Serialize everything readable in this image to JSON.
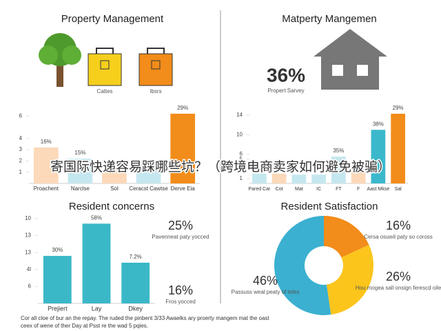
{
  "panels": {
    "top_left": {
      "title": "Property Management",
      "labels": [
        "Cattes",
        "Ibsrs"
      ]
    },
    "top_right": {
      "title": "Matperty Mangemen",
      "stat": "36%",
      "caption": "Propert Sarvey"
    }
  },
  "chart_data": [
    {
      "type": "bar",
      "categories": [
        "Proachent",
        "Narclse",
        "Sol",
        "Ceracst Cawtse",
        "Derve Eia"
      ],
      "values": [
        3.2,
        2.2,
        1.1,
        1.7,
        6.2
      ],
      "value_labels": [
        "16%",
        "15%",
        null,
        null,
        "29%"
      ],
      "colors": [
        "#fbd9b9",
        "#c5e7ef",
        "#fbd9b9",
        "#c5e7ef",
        "#f28c1a"
      ],
      "ylim": [
        0,
        6.5
      ],
      "yticks": [
        1,
        2,
        3,
        4,
        6
      ]
    },
    {
      "type": "bar",
      "categories": [
        "Pared Car",
        "Cot",
        "Mat",
        "IC",
        "FT",
        "F",
        "Aast Mkse",
        "Sal"
      ],
      "values": [
        2,
        2,
        1.8,
        1.8,
        5.5,
        2.5,
        11,
        14.3
      ],
      "value_labels": [
        null,
        null,
        null,
        null,
        "35%",
        null,
        "38%",
        "29%"
      ],
      "colors": [
        "#c5e7ef",
        "#fbd9b9",
        "#c5e7ef",
        "#c5e7ef",
        "#c5e7ef",
        "#fbd9b9",
        "#3bb8cc",
        "#f28c1a"
      ],
      "ylim": [
        0,
        15
      ],
      "yticks": [
        1,
        5,
        6,
        10,
        14
      ]
    },
    {
      "type": "bar",
      "title": "Resident concerns",
      "categories": [
        "Prejiert",
        "Lay",
        "Dkey"
      ],
      "values": [
        2.8,
        4.7,
        2.4
      ],
      "value_labels": [
        "30%",
        "58%",
        "7.2%"
      ],
      "colors": [
        "#3bb8c8",
        "#3bb8c8",
        "#3bb8c8"
      ],
      "ylim": [
        0,
        5.2
      ],
      "yticks": [
        {
          "value": 1,
          "label": "6"
        },
        {
          "value": 2,
          "label": "4l"
        },
        {
          "value": 3,
          "label": "13"
        },
        {
          "value": 4,
          "label": "13"
        },
        {
          "value": 5,
          "label": "10"
        }
      ],
      "annotations": [
        {
          "label": "25%",
          "text": "Pavenneat paty yocced"
        },
        {
          "label": "16%",
          "text": "Fros yocced"
        }
      ]
    },
    {
      "type": "pie",
      "title": "Resident Satisfaction",
      "values": [
        16,
        26,
        46
      ],
      "value_labels": [
        "16%",
        "26%",
        "46%"
      ],
      "colors": [
        "#f28c1a",
        "#fbc51c",
        "#3bb0d0"
      ],
      "slice_captions": [
        "Cersa osuwil paty so coross",
        "Hou mogea sall onsign ferescd oile",
        "Passuss weal peaty of teles"
      ]
    }
  ],
  "overlay_text": "寄国际快递容易踩哪些坑？（跨境电商卖家如何避免被骗）",
  "footer": [
    "Cor all cloe of bur an the repay. The ruded the pinbent 3/33 Awaelks ary proerty mangem mat the oast",
    "ceex of wene of ther Day at Psst re the wad 5 pqies."
  ]
}
